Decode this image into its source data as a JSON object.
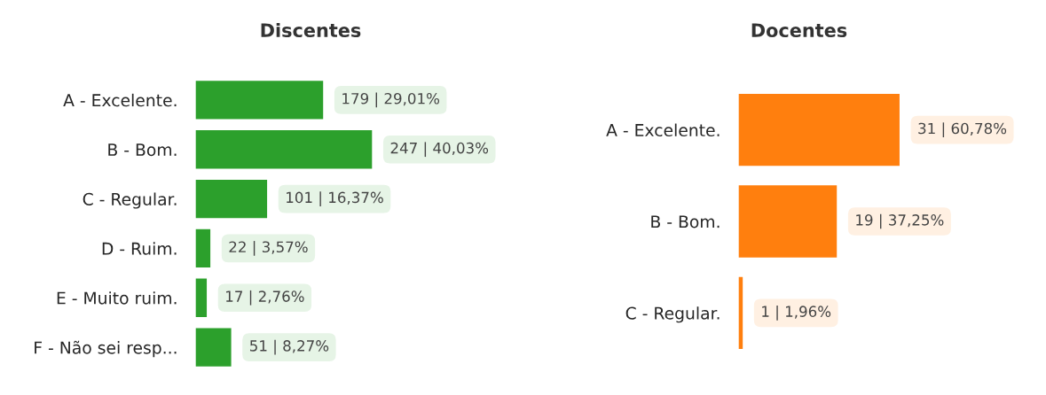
{
  "chart_data": [
    {
      "type": "bar",
      "orientation": "horizontal",
      "title": "Discentes",
      "categories": [
        "A - Excelente.",
        "B - Bom.",
        "C - Regular.",
        "D - Ruim.",
        "E - Muito ruim.",
        "F - Não sei resp..."
      ],
      "series": [
        {
          "color": "#2ca02c",
          "values": [
            179,
            247,
            101,
            22,
            17,
            51
          ],
          "value_labels": [
            "179 | 29,01%",
            "247 | 40,03%",
            "101 | 16,37%",
            "22 | 3,57%",
            "17 | 2,76%",
            "51 | 8,27%"
          ]
        }
      ],
      "grid": false,
      "legend": false
    },
    {
      "type": "bar",
      "orientation": "horizontal",
      "title": "Docentes",
      "categories": [
        "A - Excelente.",
        "B - Bom.",
        "C - Regular."
      ],
      "series": [
        {
          "color": "#ff7f0e",
          "values": [
            31,
            19,
            1
          ],
          "value_labels": [
            "31 | 60,78%",
            "19 | 37,25%",
            "1 | 1,96%"
          ]
        }
      ],
      "grid": false,
      "legend": false
    }
  ]
}
